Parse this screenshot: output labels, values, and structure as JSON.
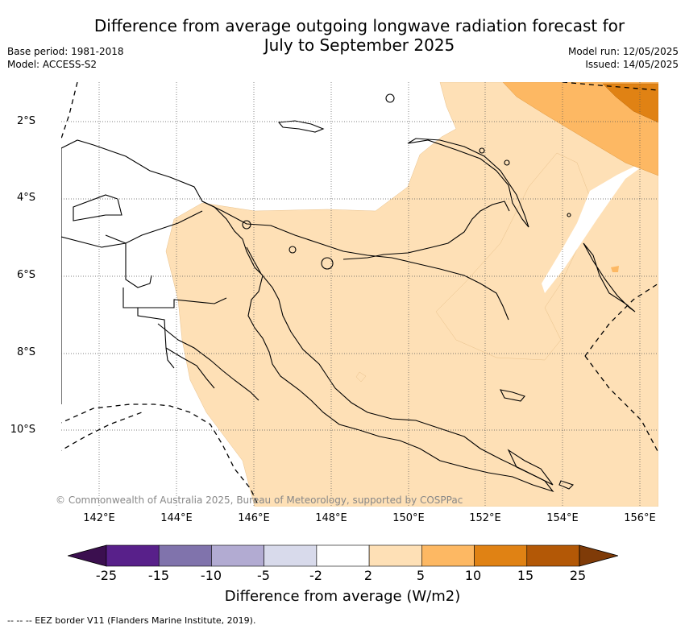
{
  "title_line1": "Difference from average outgoing longwave radiation forecast for",
  "title_line2": "July to September 2025",
  "base_period": "Base period: 1981-2018",
  "model": "Model: ACCESS-S2",
  "model_run": "Model run: 12/05/2025",
  "issued": "Issued: 14/05/2025",
  "latitudes": [
    "2°S",
    "4°S",
    "6°S",
    "8°S",
    "10°S"
  ],
  "longitudes": [
    "142°E",
    "144°E",
    "146°E",
    "148°E",
    "150°E",
    "152°E",
    "154°E",
    "156°E"
  ],
  "copyright": "© Commonwealth of Australia 2025, Bureau of Meteorology, supported by COSPPac",
  "legend": {
    "ticks": [
      "-25",
      "-15",
      "-10",
      "-5",
      "-2",
      "2",
      "5",
      "10",
      "15",
      "25"
    ],
    "colors": [
      "#3b0f4f",
      "#58208a",
      "#8073ac",
      "#b2abd2",
      "#d8daeb",
      "#ffffff",
      "#fee0b6",
      "#fdb863",
      "#e08214",
      "#b35806",
      "#7f3b08"
    ],
    "label": "Difference from average (W/m2)"
  },
  "eez_note": "--  --  -- EEZ border V11 (Flanders Marine Institute, 2019)."
}
